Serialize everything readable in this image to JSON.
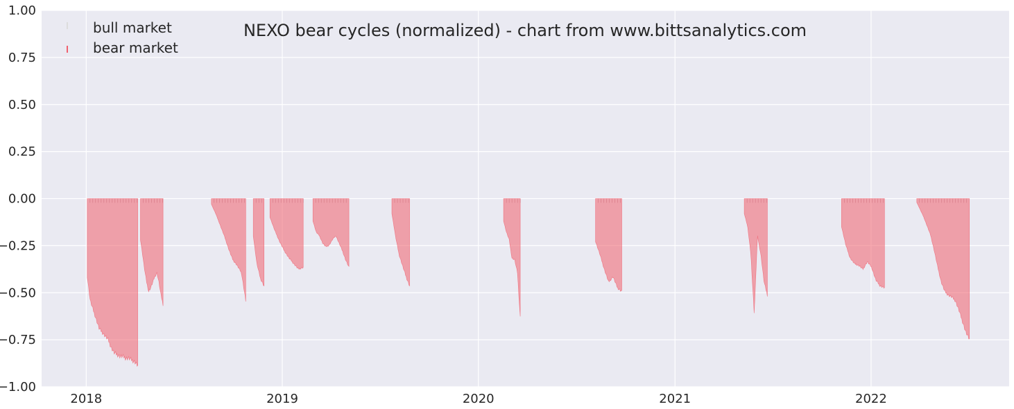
{
  "chart_data": {
    "type": "bar",
    "title": "NEXO bear cycles (normalized)  - chart from www.bittsanalytics.com",
    "xlabel": "",
    "ylabel": "",
    "ylim": [
      -1.0,
      1.0
    ],
    "xlim": [
      "2017-10-10",
      "2022-09-15"
    ],
    "y_ticks": [
      1.0,
      0.75,
      0.5,
      0.25,
      0.0,
      -0.25,
      -0.5,
      -0.75,
      -1.0
    ],
    "y_tick_labels": [
      "1.00",
      "0.75",
      "0.50",
      "0.25",
      "0.00",
      "−0.25",
      "−0.50",
      "−0.75",
      "−1.00"
    ],
    "x_ticks": [
      "2018-01-01",
      "2019-01-01",
      "2020-01-01",
      "2021-01-01",
      "2022-01-01"
    ],
    "x_tick_labels": [
      "2018",
      "2019",
      "2020",
      "2021",
      "2022"
    ],
    "grid": true,
    "legend_position": "top-left",
    "colors": {
      "bull": "#dddddd",
      "bear": "#f0606e",
      "background": "#eaeaf2",
      "grid": "#ffffff"
    },
    "series": [
      {
        "name": "bull market",
        "segments": []
      },
      {
        "name": "bear market",
        "segments": [
          {
            "start": "2018-01-03",
            "end": "2018-04-07",
            "values": [
              -0.42,
              -0.55,
              -0.6,
              -0.65,
              -0.7,
              -0.72,
              -0.74,
              -0.76,
              -0.8,
              -0.83,
              -0.84,
              -0.85,
              -0.85,
              -0.86,
              -0.86,
              -0.87,
              -0.88,
              -0.9
            ]
          },
          {
            "start": "2018-04-12",
            "end": "2018-05-24",
            "values": [
              -0.22,
              -0.3,
              -0.38,
              -0.45,
              -0.5,
              -0.48,
              -0.45,
              -0.42,
              -0.4,
              -0.45,
              -0.52,
              -0.57
            ]
          },
          {
            "start": "2018-08-22",
            "end": "2018-10-25",
            "values": [
              -0.03,
              -0.08,
              -0.14,
              -0.2,
              -0.27,
              -0.33,
              -0.36,
              -0.4,
              -0.55
            ]
          },
          {
            "start": "2018-11-08",
            "end": "2018-11-28",
            "values": [
              -0.2,
              -0.35,
              -0.43,
              -0.47
            ]
          },
          {
            "start": "2018-12-09",
            "end": "2019-02-09",
            "values": [
              -0.1,
              -0.17,
              -0.23,
              -0.28,
              -0.32,
              -0.35,
              -0.38,
              -0.37
            ]
          },
          {
            "start": "2019-02-27",
            "end": "2019-05-05",
            "values": [
              -0.12,
              -0.18,
              -0.2,
              -0.24,
              -0.26,
              -0.25,
              -0.22,
              -0.2,
              -0.24,
              -0.28,
              -0.33,
              -0.37
            ]
          },
          {
            "start": "2019-07-24",
            "end": "2019-08-26",
            "values": [
              -0.08,
              -0.2,
              -0.3,
              -0.36,
              -0.42,
              -0.47
            ]
          },
          {
            "start": "2020-02-17",
            "end": "2020-03-19",
            "values": [
              -0.12,
              -0.18,
              -0.22,
              -0.32,
              -0.33,
              -0.4,
              -0.64
            ]
          },
          {
            "start": "2020-08-06",
            "end": "2020-09-24",
            "values": [
              -0.23,
              -0.3,
              -0.38,
              -0.45,
              -0.42,
              -0.48,
              -0.5
            ]
          },
          {
            "start": "2021-05-10",
            "end": "2021-06-22",
            "values": [
              -0.08,
              -0.15,
              -0.3,
              -0.62,
              -0.2,
              -0.3,
              -0.45,
              -0.52
            ]
          },
          {
            "start": "2021-11-07",
            "end": "2022-01-26",
            "values": [
              -0.15,
              -0.25,
              -0.32,
              -0.35,
              -0.36,
              -0.38,
              -0.34,
              -0.37,
              -0.44,
              -0.47,
              -0.48
            ]
          },
          {
            "start": "2022-03-27",
            "end": "2022-07-03",
            "values": [
              -0.02,
              -0.06,
              -0.1,
              -0.15,
              -0.2,
              -0.28,
              -0.37,
              -0.45,
              -0.5,
              -0.52,
              -0.53,
              -0.55,
              -0.6,
              -0.66,
              -0.72,
              -0.76
            ]
          }
        ]
      }
    ]
  }
}
